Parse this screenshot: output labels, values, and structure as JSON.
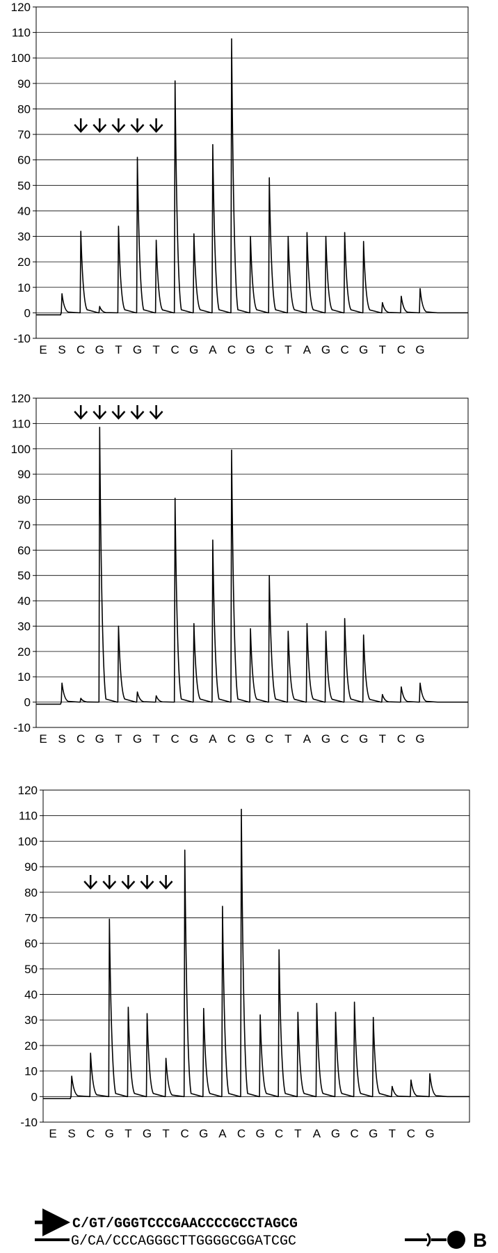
{
  "chart_data": [
    {
      "type": "line",
      "title": "",
      "xlabel": "",
      "ylabel": "",
      "ylim": [
        -10,
        120
      ],
      "yticks": [
        -10,
        0,
        10,
        20,
        30,
        40,
        50,
        60,
        70,
        80,
        90,
        100,
        110,
        120
      ],
      "grid": true,
      "x": [
        "E",
        "S",
        "C",
        "G",
        "T",
        "G",
        "T",
        "C",
        "G",
        "A",
        "C",
        "G",
        "C",
        "T",
        "A",
        "G",
        "C",
        "G",
        "T",
        "C",
        "G"
      ],
      "values": [
        0,
        7.5,
        32,
        2.5,
        34,
        61,
        28.5,
        91,
        31,
        66,
        107.5,
        30,
        53,
        30,
        31.5,
        30,
        31.5,
        28,
        4,
        6.5,
        9.5
      ],
      "arrows_over": [
        "C",
        "G",
        "T",
        "G",
        "T"
      ]
    },
    {
      "type": "line",
      "title": "",
      "xlabel": "",
      "ylabel": "",
      "ylim": [
        -10,
        120
      ],
      "yticks": [
        -10,
        0,
        10,
        20,
        30,
        40,
        50,
        60,
        70,
        80,
        90,
        100,
        110,
        120
      ],
      "grid": true,
      "x": [
        "E",
        "S",
        "C",
        "G",
        "T",
        "G",
        "T",
        "C",
        "G",
        "A",
        "C",
        "G",
        "C",
        "T",
        "A",
        "G",
        "C",
        "G",
        "T",
        "C",
        "G"
      ],
      "values": [
        0,
        7.5,
        1.5,
        108.5,
        30,
        4,
        2.5,
        80.5,
        31,
        64,
        99.5,
        29,
        50,
        28,
        31,
        28,
        33,
        26.5,
        3,
        6,
        7.5
      ],
      "arrows_over": [
        "C",
        "G",
        "T",
        "G",
        "T"
      ]
    },
    {
      "type": "line",
      "title": "",
      "xlabel": "",
      "ylabel": "",
      "ylim": [
        -10,
        120
      ],
      "yticks": [
        -10,
        0,
        10,
        20,
        30,
        40,
        50,
        60,
        70,
        80,
        90,
        100,
        110,
        120
      ],
      "grid": true,
      "x": [
        "E",
        "S",
        "C",
        "G",
        "T",
        "G",
        "T",
        "C",
        "G",
        "A",
        "C",
        "G",
        "C",
        "T",
        "A",
        "G",
        "C",
        "G",
        "T",
        "C",
        "G"
      ],
      "values": [
        0,
        8,
        17,
        69.5,
        35,
        32.5,
        15,
        96.5,
        34.5,
        74.5,
        112.5,
        32,
        57.5,
        33,
        36.5,
        33,
        37,
        31,
        4,
        6.5,
        9
      ],
      "arrows_over": [
        "C",
        "G",
        "T",
        "G",
        "T"
      ]
    }
  ],
  "sequence": {
    "top_strand": "C/GT/GGGTCCCGAACCCCGCCTAGCG",
    "bottom_strand": "G/CA/CCCAGGGCTTGGGGCGGATCGC",
    "label": "B"
  },
  "icons": {
    "primer_arrow": "right-arrow-icon",
    "biotin_bead": "biotin-bead-icon",
    "dispensation_arrow": "down-arrow-icon"
  }
}
